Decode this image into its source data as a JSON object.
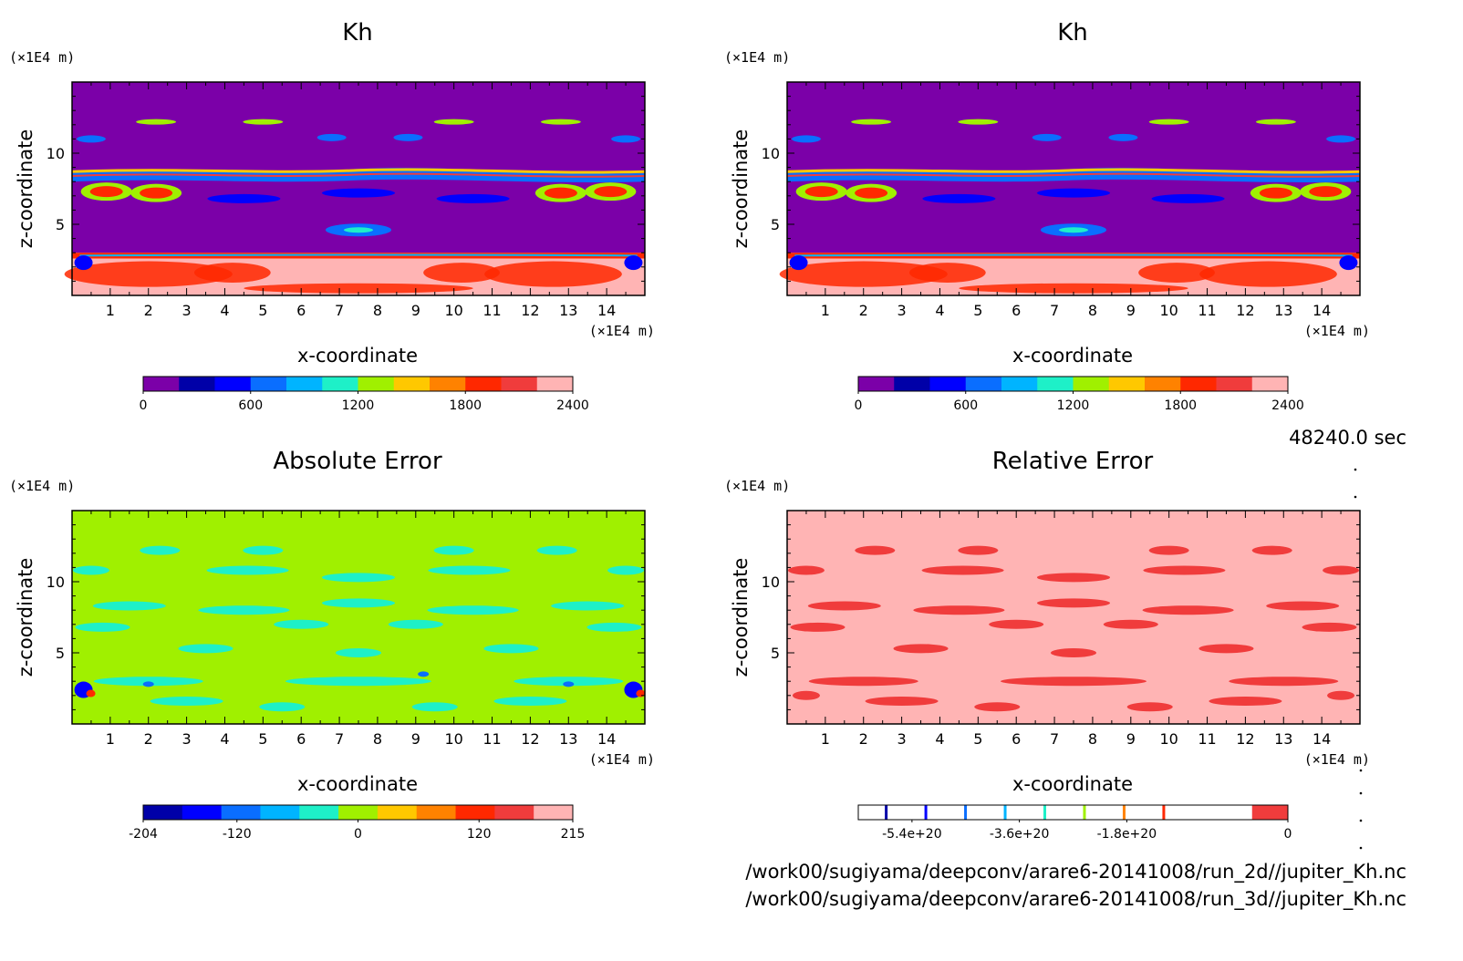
{
  "footer": {
    "time": "48240.0 sec",
    "file1": "/work00/sugiyama/deepconv/arare6-20141008/run_2d//jupiter_Kh.nc",
    "file2": "/work00/sugiyama/deepconv/arare6-20141008/run_3d//jupiter_Kh.nc"
  },
  "chart_data": [
    {
      "type": "heatmap",
      "title": "Kh",
      "xlabel": "x-coordinate",
      "ylabel": "z-coordinate",
      "x_unit": "(×1E4 m)",
      "y_unit": "(×1E4 m)",
      "xlim": [
        0,
        15
      ],
      "ylim": [
        0,
        15
      ],
      "xticks": [
        1,
        2,
        3,
        4,
        5,
        6,
        7,
        8,
        9,
        10,
        11,
        12,
        13,
        14
      ],
      "yticks": [
        5,
        10
      ],
      "colorbar": {
        "colors": [
          "#7b00a8",
          "#0000a8",
          "#0000ff",
          "#0a6eff",
          "#00b4ff",
          "#1ef0c8",
          "#a0f000",
          "#ffc800",
          "#ff8200",
          "#ff2800",
          "#f03c3c",
          "#ffb4b4"
        ],
        "labels": [
          "0",
          "600",
          "1200",
          "1800",
          "2400"
        ]
      }
    },
    {
      "type": "heatmap",
      "title": "Kh",
      "xlabel": "x-coordinate",
      "ylabel": "z-coordinate",
      "x_unit": "(×1E4 m)",
      "y_unit": "(×1E4 m)",
      "xlim": [
        0,
        15
      ],
      "ylim": [
        0,
        15
      ],
      "xticks": [
        1,
        2,
        3,
        4,
        5,
        6,
        7,
        8,
        9,
        10,
        11,
        12,
        13,
        14
      ],
      "yticks": [
        5,
        10
      ],
      "colorbar": {
        "colors": [
          "#7b00a8",
          "#0000a8",
          "#0000ff",
          "#0a6eff",
          "#00b4ff",
          "#1ef0c8",
          "#a0f000",
          "#ffc800",
          "#ff8200",
          "#ff2800",
          "#f03c3c",
          "#ffb4b4"
        ],
        "labels": [
          "0",
          "600",
          "1200",
          "1800",
          "2400"
        ]
      }
    },
    {
      "type": "heatmap",
      "title": "Absolute Error",
      "xlabel": "x-coordinate",
      "ylabel": "z-coordinate",
      "x_unit": "(×1E4 m)",
      "y_unit": "(×1E4 m)",
      "xlim": [
        0,
        15
      ],
      "ylim": [
        0,
        15
      ],
      "xticks": [
        1,
        2,
        3,
        4,
        5,
        6,
        7,
        8,
        9,
        10,
        11,
        12,
        13,
        14
      ],
      "yticks": [
        5,
        10
      ],
      "colorbar": {
        "colors": [
          "#0000a8",
          "#0000ff",
          "#0a6eff",
          "#00b4ff",
          "#1ef0c8",
          "#a0f000",
          "#ffc800",
          "#ff8200",
          "#ff2800",
          "#f03c3c",
          "#ffb4b4"
        ],
        "labels": [
          "-204",
          "-120",
          "0",
          "120",
          "215"
        ]
      }
    },
    {
      "type": "heatmap",
      "title": "Relative Error",
      "xlabel": "x-coordinate",
      "ylabel": "z-coordinate",
      "x_unit": "(×1E4 m)",
      "y_unit": "(×1E4 m)",
      "xlim": [
        0,
        15
      ],
      "ylim": [
        0,
        15
      ],
      "xticks": [
        1,
        2,
        3,
        4,
        5,
        6,
        7,
        8,
        9,
        10,
        11,
        12,
        13,
        14
      ],
      "yticks": [
        5,
        10
      ],
      "colorbar": {
        "colors": [
          "#ffffff",
          "#ffffff",
          "#ffffff",
          "#ffffff",
          "#ffffff",
          "#ffffff",
          "#ffffff",
          "#ffffff",
          "#ffffff",
          "#ffffff",
          "#ffffff",
          "#f03c3c"
        ],
        "line_colors": [
          "#0000a8",
          "#0000ff",
          "#0a6eff",
          "#00b4ff",
          "#1ef0c8",
          "#a0f000",
          "#ff8200",
          "#ff2800"
        ],
        "labels": [
          "-5.4e+20",
          "-3.6e+20",
          "-1.8e+20",
          "0"
        ]
      }
    }
  ]
}
